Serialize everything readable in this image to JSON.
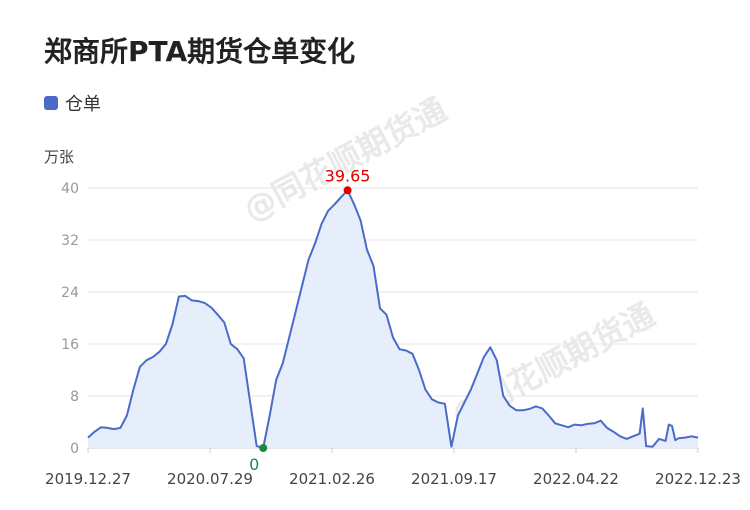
{
  "title": "郑商所PTA期货仓单变化",
  "unit": "万张",
  "watermark": "@同花顺期货通",
  "colors": {
    "line": "#4a6bc9",
    "fill": "#e7eefb",
    "max": "#e00000",
    "min": "#1a8a3a",
    "grid": "#e6e6e6",
    "axis": "#999999"
  },
  "chart_data": {
    "type": "area",
    "title": "郑商所PTA期货仓单变化",
    "ylabel": "万张",
    "legend": [
      "仓单"
    ],
    "legend_position": "top-left",
    "grid": true,
    "ylim": [
      0,
      40
    ],
    "y_ticks": [
      "0",
      "8",
      "16",
      "24",
      "32",
      "40"
    ],
    "x_ticks": [
      "2019.12.27",
      "2020.07.29",
      "2021.02.26",
      "2021.09.17",
      "2022.04.22",
      "2022.12.23"
    ],
    "annotations": {
      "max_label": "39.65",
      "min_label": "0"
    },
    "series": [
      {
        "name": "仓单",
        "points": [
          [
            0,
            1.6
          ],
          [
            1,
            2.5
          ],
          [
            2,
            3.2
          ],
          [
            3,
            3.1
          ],
          [
            4,
            2.9
          ],
          [
            5,
            3.1
          ],
          [
            6,
            5
          ],
          [
            7,
            9
          ],
          [
            8,
            12.5
          ],
          [
            9,
            13.5
          ],
          [
            10,
            14
          ],
          [
            11,
            14.8
          ],
          [
            12,
            16
          ],
          [
            13,
            19
          ],
          [
            14,
            23.3
          ],
          [
            15,
            23.4
          ],
          [
            16,
            22.7
          ],
          [
            17,
            22.6
          ],
          [
            18,
            22.3
          ],
          [
            19,
            21.6
          ],
          [
            20,
            20.5
          ],
          [
            21,
            19.3
          ],
          [
            22,
            16
          ],
          [
            23,
            15.2
          ],
          [
            24,
            13.8
          ],
          [
            25,
            7
          ],
          [
            26,
            0.3
          ],
          [
            27,
            0
          ],
          [
            28,
            5
          ],
          [
            29,
            10.5
          ],
          [
            30,
            13
          ],
          [
            31,
            17
          ],
          [
            32,
            21
          ],
          [
            33,
            25
          ],
          [
            34,
            29
          ],
          [
            35,
            31.5
          ],
          [
            36,
            34.5
          ],
          [
            37,
            36.5
          ],
          [
            38,
            37.5
          ],
          [
            39,
            38.6
          ],
          [
            40,
            39.65
          ],
          [
            41,
            37.5
          ],
          [
            42,
            35
          ],
          [
            43,
            30.5
          ],
          [
            44,
            28
          ],
          [
            45,
            21.5
          ],
          [
            46,
            20.5
          ],
          [
            47,
            17
          ],
          [
            48,
            15.2
          ],
          [
            49,
            15
          ],
          [
            50,
            14.5
          ],
          [
            51,
            12
          ],
          [
            52,
            9
          ],
          [
            53,
            7.5
          ],
          [
            54,
            7
          ],
          [
            55,
            6.8
          ],
          [
            56,
            0.2
          ],
          [
            57,
            5
          ],
          [
            58,
            7
          ],
          [
            59,
            9
          ],
          [
            60,
            11.5
          ],
          [
            61,
            14
          ],
          [
            62,
            15.5
          ],
          [
            63,
            13.5
          ],
          [
            64,
            8
          ],
          [
            65,
            6.5
          ],
          [
            66,
            5.8
          ],
          [
            67,
            5.8
          ],
          [
            68,
            6
          ],
          [
            69,
            6.4
          ],
          [
            70,
            6.1
          ],
          [
            71,
            5
          ],
          [
            72,
            3.8
          ],
          [
            73,
            3.5
          ],
          [
            74,
            3.2
          ],
          [
            75,
            3.6
          ],
          [
            76,
            3.5
          ],
          [
            77,
            3.7
          ],
          [
            78,
            3.8
          ],
          [
            79,
            4.2
          ],
          [
            80,
            3.1
          ],
          [
            81,
            2.5
          ],
          [
            82,
            1.8
          ],
          [
            83,
            1.4
          ],
          [
            84,
            1.8
          ],
          [
            85,
            2.2
          ],
          [
            85.5,
            6.1
          ],
          [
            86,
            0.3
          ],
          [
            87,
            0.2
          ],
          [
            88,
            1.4
          ],
          [
            89,
            1.1
          ],
          [
            89.5,
            3.6
          ],
          [
            90,
            3.4
          ],
          [
            90.5,
            1.2
          ],
          [
            91,
            1.5
          ],
          [
            92,
            1.6
          ],
          [
            93,
            1.8
          ],
          [
            94,
            1.6
          ]
        ]
      }
    ]
  }
}
